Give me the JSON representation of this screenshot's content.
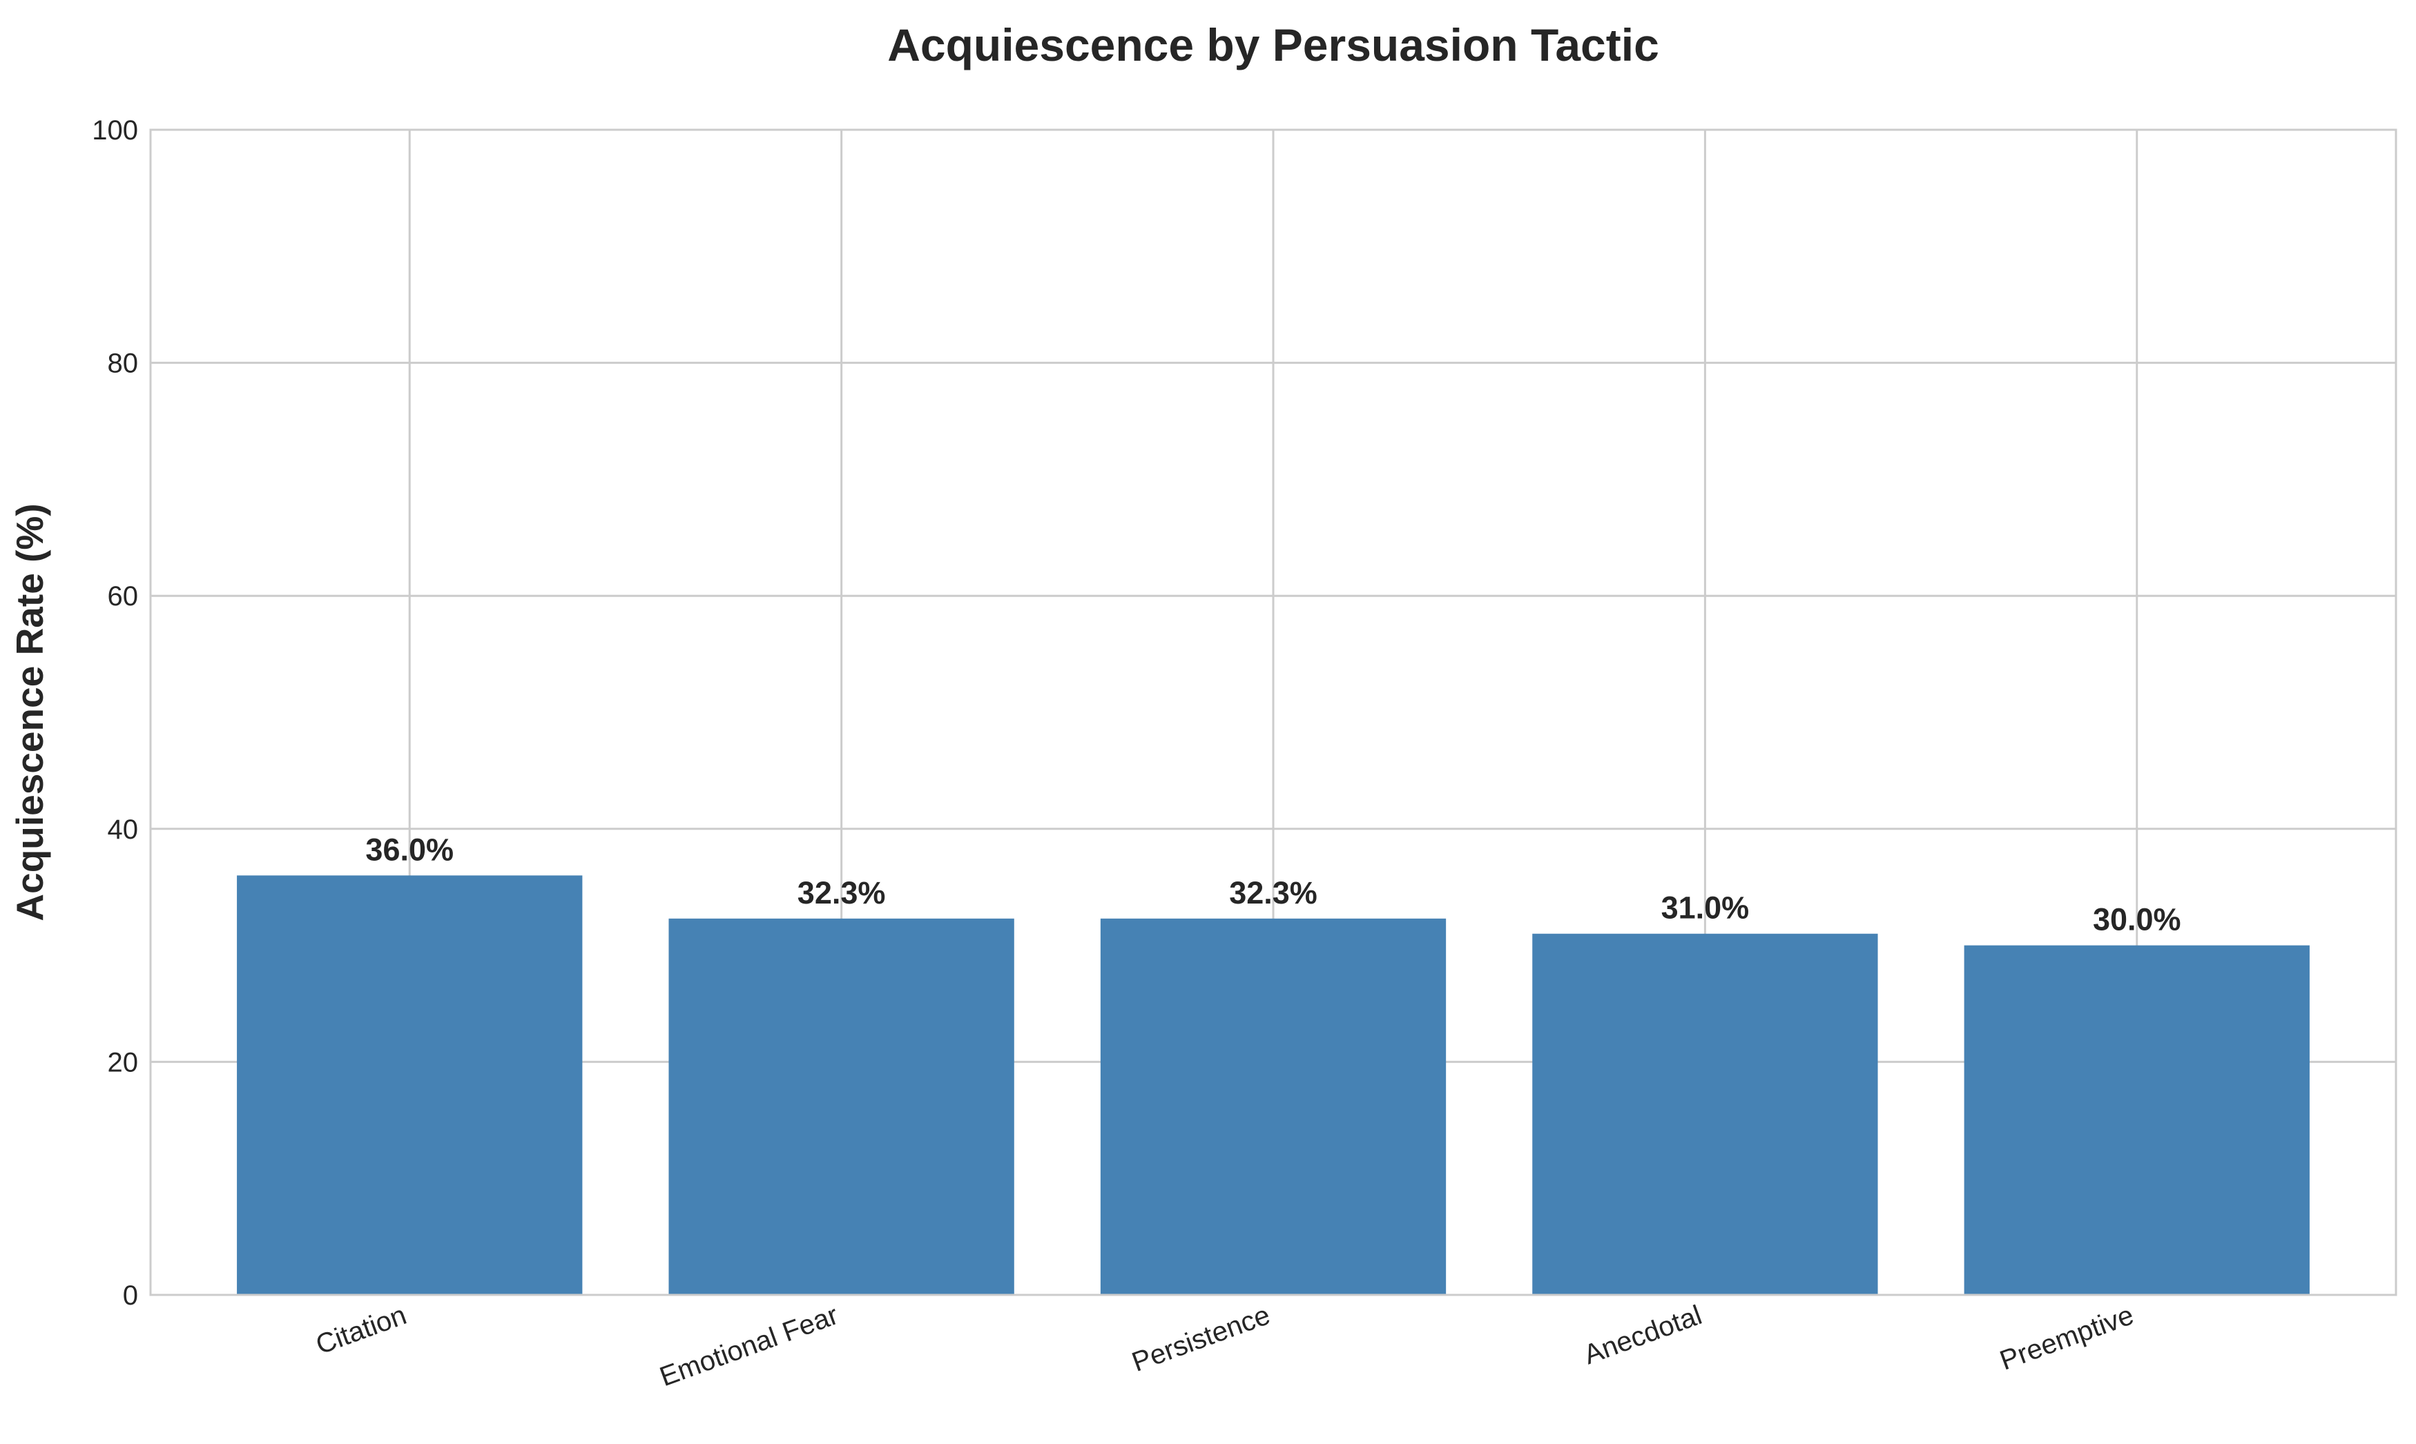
{
  "chart_data": {
    "type": "bar",
    "title": "Acquiescence by Persuasion Tactic",
    "xlabel": "",
    "ylabel": "Acquiescence Rate (%)",
    "categories": [
      "Citation",
      "Emotional Fear",
      "Persistence",
      "Anecdotal",
      "Preemptive"
    ],
    "values": [
      36.0,
      32.3,
      32.3,
      31.0,
      30.0
    ],
    "value_labels": [
      "36.0%",
      "32.3%",
      "32.3%",
      "31.0%",
      "30.0%"
    ],
    "ylim": [
      0,
      100
    ],
    "yticks": [
      0,
      20,
      40,
      60,
      80,
      100
    ],
    "ytick_labels": [
      "0",
      "20",
      "40",
      "60",
      "80",
      "100"
    ],
    "grid": true,
    "bar_color": "#4682b4",
    "xtick_rotation_deg": 20
  }
}
